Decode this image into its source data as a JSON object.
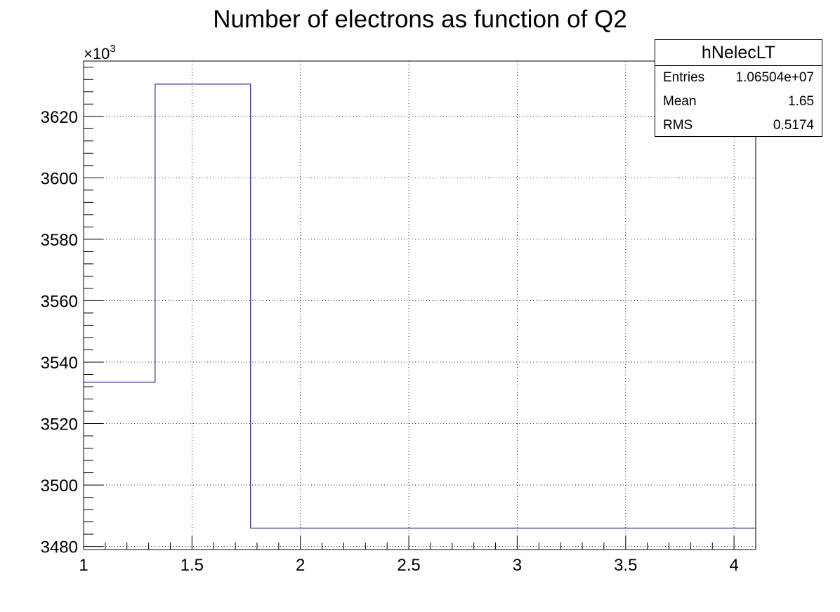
{
  "chart_data": {
    "type": "histogram",
    "title": "Number of electrons as function of Q2",
    "xlabel": "",
    "ylabel": "",
    "y_exponent_label": "×10",
    "y_exponent_power": "3",
    "xlim": [
      1.0,
      4.1
    ],
    "ylim": [
      3479,
      3638
    ],
    "x_ticks": [
      1,
      1.5,
      2,
      2.5,
      3,
      3.5,
      4
    ],
    "x_tick_labels": [
      "1",
      "1.5",
      "2",
      "2.5",
      "3",
      "3.5",
      "4"
    ],
    "y_ticks": [
      3480,
      3500,
      3520,
      3540,
      3560,
      3580,
      3600,
      3620
    ],
    "y_tick_labels": [
      "3480",
      "3500",
      "3520",
      "3540",
      "3560",
      "3580",
      "3600",
      "3620"
    ],
    "grid": true,
    "line_color": "#000080",
    "bins": [
      {
        "x_low": 1.0,
        "x_high": 1.33,
        "value": 3533.5
      },
      {
        "x_low": 1.33,
        "x_high": 1.77,
        "value": 3630.5
      },
      {
        "x_low": 1.77,
        "x_high": 4.1,
        "value": 3486.0
      }
    ]
  },
  "stats_box": {
    "name": "hNelecLT",
    "rows": [
      {
        "key": "Entries",
        "value": "1.06504e+07"
      },
      {
        "key": "Mean",
        "value": "1.65"
      },
      {
        "key": "RMS",
        "value": "0.5174"
      }
    ]
  }
}
